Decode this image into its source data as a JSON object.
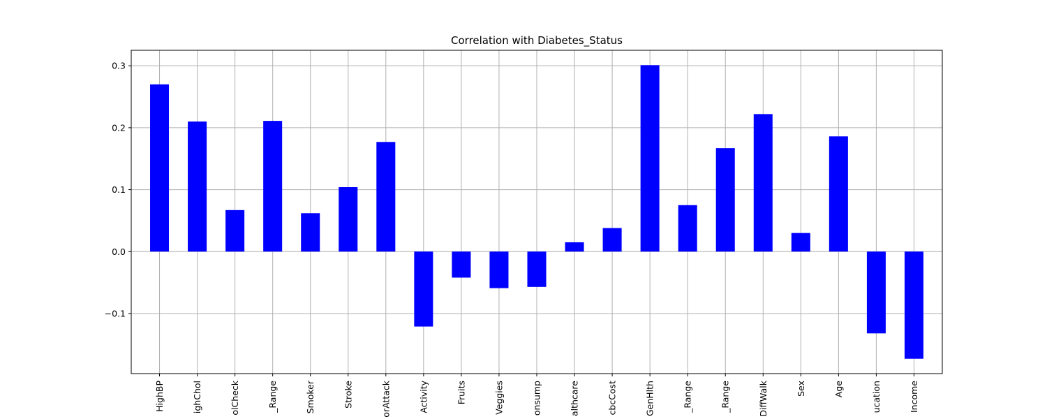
{
  "chart_data": {
    "type": "bar",
    "title": "Correlation with Diabetes_Status",
    "xlabel": "",
    "ylabel": "",
    "categories": [
      "HighBP",
      "HighChol",
      "CholCheck",
      "BMI_Range",
      "Smoker",
      "Stroke",
      "HeartDiseaseorAttack",
      "PhysActivity",
      "Fruits",
      "Veggies",
      "HvyAlcoholConsump",
      "AnyHealthcare",
      "NoDocbcCost",
      "GenHlth",
      "MentHlth_Range",
      "PhysHlth_Range",
      "DiffWalk",
      "Sex",
      "Age",
      "Education",
      "Income"
    ],
    "tick_labels": [
      "HighBP",
      "ighChol",
      "olCheck",
      "_Range",
      "Smoker",
      "Stroke",
      "orAttack",
      "Activity",
      "Fruits",
      "Veggies",
      "onsump",
      "althcare",
      "cbcCost",
      "GenHlth",
      "_Range",
      "_Range",
      "DiffWalk",
      "Sex",
      "Age",
      "ucation",
      "Income"
    ],
    "values": [
      0.27,
      0.21,
      0.067,
      0.211,
      0.062,
      0.104,
      0.177,
      -0.121,
      -0.042,
      -0.059,
      -0.057,
      0.015,
      0.038,
      0.301,
      0.075,
      0.167,
      0.222,
      0.03,
      0.186,
      -0.132,
      -0.173
    ],
    "yticks": [
      -0.1,
      0.0,
      0.1,
      0.2,
      0.3
    ],
    "ytick_labels": [
      "−0.1",
      "0.0",
      "0.1",
      "0.2",
      "0.3"
    ],
    "ylim": [
      -0.197,
      0.325
    ],
    "grid": true,
    "legend": false,
    "bar_color": "#0000ff"
  }
}
